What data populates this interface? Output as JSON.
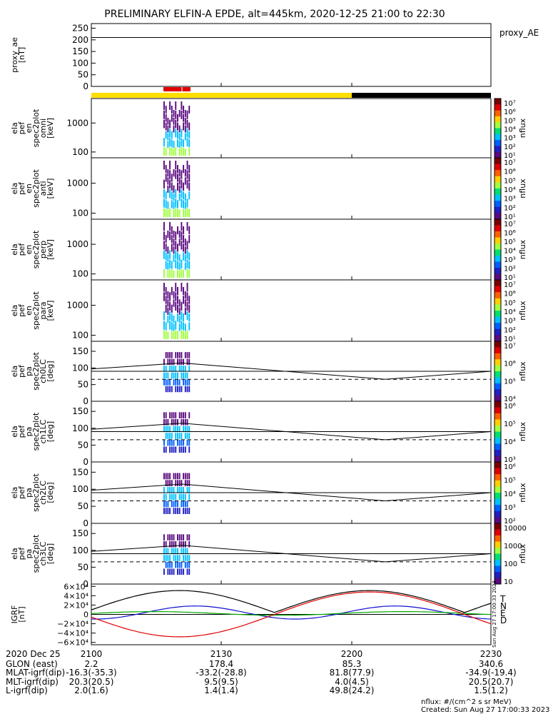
{
  "title": "PRELIMINARY ELFIN-A EPDE, alt=445km, 2020-12-25 21:00 to 22:30",
  "colors": {
    "yellow": "#ffde00",
    "red": "#e00000",
    "black": "#000000",
    "blue": "#1010d0",
    "green": "#00aa00"
  },
  "chart_data": [
    {
      "type": "line",
      "panel": "proxy_ae",
      "ylabel": "proxy_ae\n[nT]",
      "legend": "proxy_AE",
      "yticks": [
        "250",
        "200",
        "150",
        "100",
        "50",
        "0"
      ],
      "ylim": [
        0,
        270
      ],
      "reference_value": 210
    },
    {
      "type": "heatmap",
      "panel": "omni",
      "ylabel": "ela\npef\nen\nspec2plot\nomni\n[keV]",
      "yticks": [
        "1000",
        "100"
      ],
      "log": true,
      "ylim": [
        63,
        7000
      ],
      "colorbar": {
        "label": "nflux",
        "ticks": [
          "10⁷",
          "10⁶",
          "10⁵",
          "10⁴",
          "10³",
          "10²",
          "10¹"
        ]
      }
    },
    {
      "type": "heatmap",
      "panel": "anti",
      "ylabel": "ela\npef\nen\nspec2plot\nanti\n[keV]",
      "yticks": [
        "1000",
        "100"
      ],
      "log": true,
      "ylim": [
        63,
        7000
      ],
      "colorbar": {
        "label": "nflux",
        "ticks": [
          "10⁷",
          "10⁶",
          "10⁵",
          "10⁴",
          "10³",
          "10²",
          "10¹"
        ]
      }
    },
    {
      "type": "heatmap",
      "panel": "perp",
      "ylabel": "ela\npef\nen\nspec2plot\nperp\n[keV]",
      "yticks": [
        "1000",
        "100"
      ],
      "log": true,
      "ylim": [
        63,
        7000
      ],
      "colorbar": {
        "label": "nflux",
        "ticks": [
          "10⁷",
          "10⁶",
          "10⁵",
          "10⁴",
          "10³",
          "10²",
          "10¹"
        ]
      }
    },
    {
      "type": "heatmap",
      "panel": "para",
      "ylabel": "ela\npef\nen\nspec2plot\npara\n[keV]",
      "yticks": [
        "1000",
        "100"
      ],
      "log": true,
      "ylim": [
        63,
        7000
      ],
      "colorbar": {
        "label": "nflux",
        "ticks": [
          "10⁷",
          "10⁶",
          "10⁵",
          "10⁴",
          "10³",
          "10²",
          "10¹"
        ]
      }
    },
    {
      "type": "heatmap",
      "panel": "ch0LC",
      "ylabel": "ela\npef\npa\nspec2plot\nch0LC\n[deg]",
      "yticks": [
        "150",
        "100",
        "50",
        "0"
      ],
      "ylim": [
        0,
        180
      ],
      "colorbar": {
        "label": "nflux",
        "ticks": [
          "10⁷",
          "10⁶",
          "10⁵",
          "10⁴"
        ]
      }
    },
    {
      "type": "heatmap",
      "panel": "ch1LC",
      "ylabel": "ela\npef\npa\nspec2plot\nch1LC\n[deg]",
      "yticks": [
        "150",
        "100",
        "50",
        "0"
      ],
      "ylim": [
        0,
        180
      ],
      "colorbar": {
        "label": "nflux",
        "ticks": [
          "10⁶",
          "10⁵",
          "10⁴",
          "10³"
        ]
      }
    },
    {
      "type": "heatmap",
      "panel": "ch2LC",
      "ylabel": "ela\npef\npa\nspec2plot\nch2LC\n[deg]",
      "yticks": [
        "150",
        "100",
        "50",
        "0"
      ],
      "ylim": [
        0,
        180
      ],
      "colorbar": {
        "label": "nflux",
        "ticks": [
          "10⁶",
          "10⁵",
          "10⁴",
          "10³",
          "10²"
        ]
      }
    },
    {
      "type": "heatmap",
      "panel": "ch3LC",
      "ylabel": "ela\npef\npa\nspec2plot\nch3LC\n[deg]",
      "yticks": [
        "150",
        "100",
        "50",
        "0"
      ],
      "ylim": [
        0,
        180
      ],
      "colorbar": {
        "label": "nflux",
        "ticks": [
          "10000",
          "1000",
          "100",
          "10"
        ]
      }
    },
    {
      "type": "line",
      "panel": "IGRF",
      "ylabel": "IGRF\n[nT]",
      "yticks": [
        "6×10⁴",
        "4×10⁴",
        "2×10⁴",
        "0",
        "−2×10⁴",
        "−4×10⁴",
        "−6×10⁴"
      ],
      "ylim": [
        -65000,
        65000
      ],
      "series": [
        {
          "name": "T",
          "color": "#000000"
        },
        {
          "name": "N",
          "color": "#1010d0"
        },
        {
          "name": "E",
          "color": "#00aa00"
        },
        {
          "name": "D",
          "color": "#e00000"
        }
      ],
      "side_text": "Sun Aug 27 17:00:33 2023"
    }
  ],
  "axis_table": {
    "rows": [
      [
        "2020 Dec 25",
        "2100",
        "2130",
        "2200",
        "2230"
      ],
      [
        "GLON (east)",
        "2.2",
        "178.4",
        "85.3",
        "340.6"
      ],
      [
        "MLAT-igrf(dip)",
        "-16.3(-35.3)",
        "-33.2(-28.8)",
        "81.8(77.9)",
        "-34.9(-19.4)"
      ],
      [
        "MLT-igrf(dip)",
        "20.3(20.5)",
        "9.5(9.5)",
        "4.0(4.5)",
        "20.5(20.7)"
      ],
      [
        "L-igrf(dip)",
        "2.0(1.6)",
        "1.4(1.4)",
        "49.8(24.2)",
        "1.5(1.2)"
      ]
    ]
  },
  "footer": {
    "units": "nflux: #/(cm^2 s sr MeV)",
    "created": "Created: Sun Aug 27 17:00:33 2023"
  }
}
